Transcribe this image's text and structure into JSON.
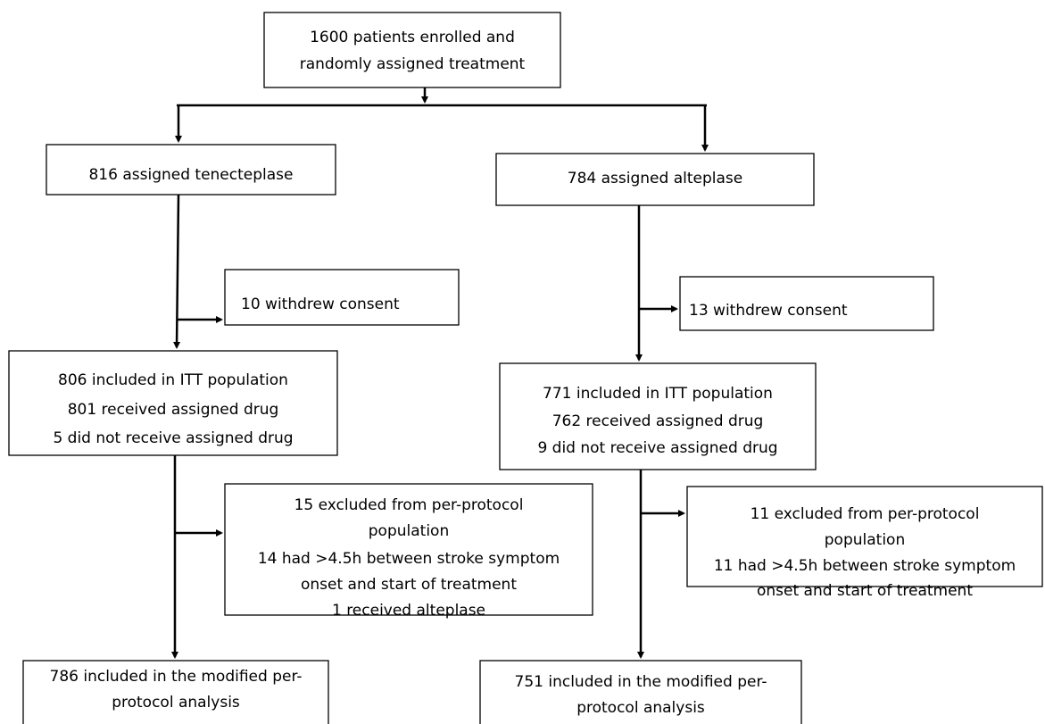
{
  "nodes": [
    {
      "lines": [
        "1600 patients enrolled and",
        "randomly assigned treatment"
      ]
    },
    {
      "lines": [
        "816 assigned tenecteplase"
      ]
    },
    {
      "lines": [
        "784 assigned alteplase"
      ]
    },
    {
      "lines": [
        "10 withdrew consent"
      ]
    },
    {
      "lines": [
        "13 withdrew consent"
      ]
    },
    {
      "lines": [
        "806 included in ITT population",
        "801 received assigned drug",
        "5 did not receive  assigned drug"
      ]
    },
    {
      "lines": [
        "771 included in ITT population",
        "762 received assigned drug",
        "9 did not receive  assigned drug"
      ]
    },
    {
      "lines": [
        "15 excluded from per-protocol",
        "population",
        "14 had >4.5h between stroke symptom",
        "onset and start of treatment",
        "1 received alteplase"
      ]
    },
    {
      "lines": [
        "11 excluded from per-protocol",
        "population",
        "11 had >4.5h between stroke symptom",
        "onset and start of treatment"
      ]
    },
    {
      "lines": [
        "786 included in the modified per-",
        "protocol analysis"
      ]
    },
    {
      "lines": [
        "751 included in the modified per-",
        "protocol analysis"
      ]
    }
  ]
}
